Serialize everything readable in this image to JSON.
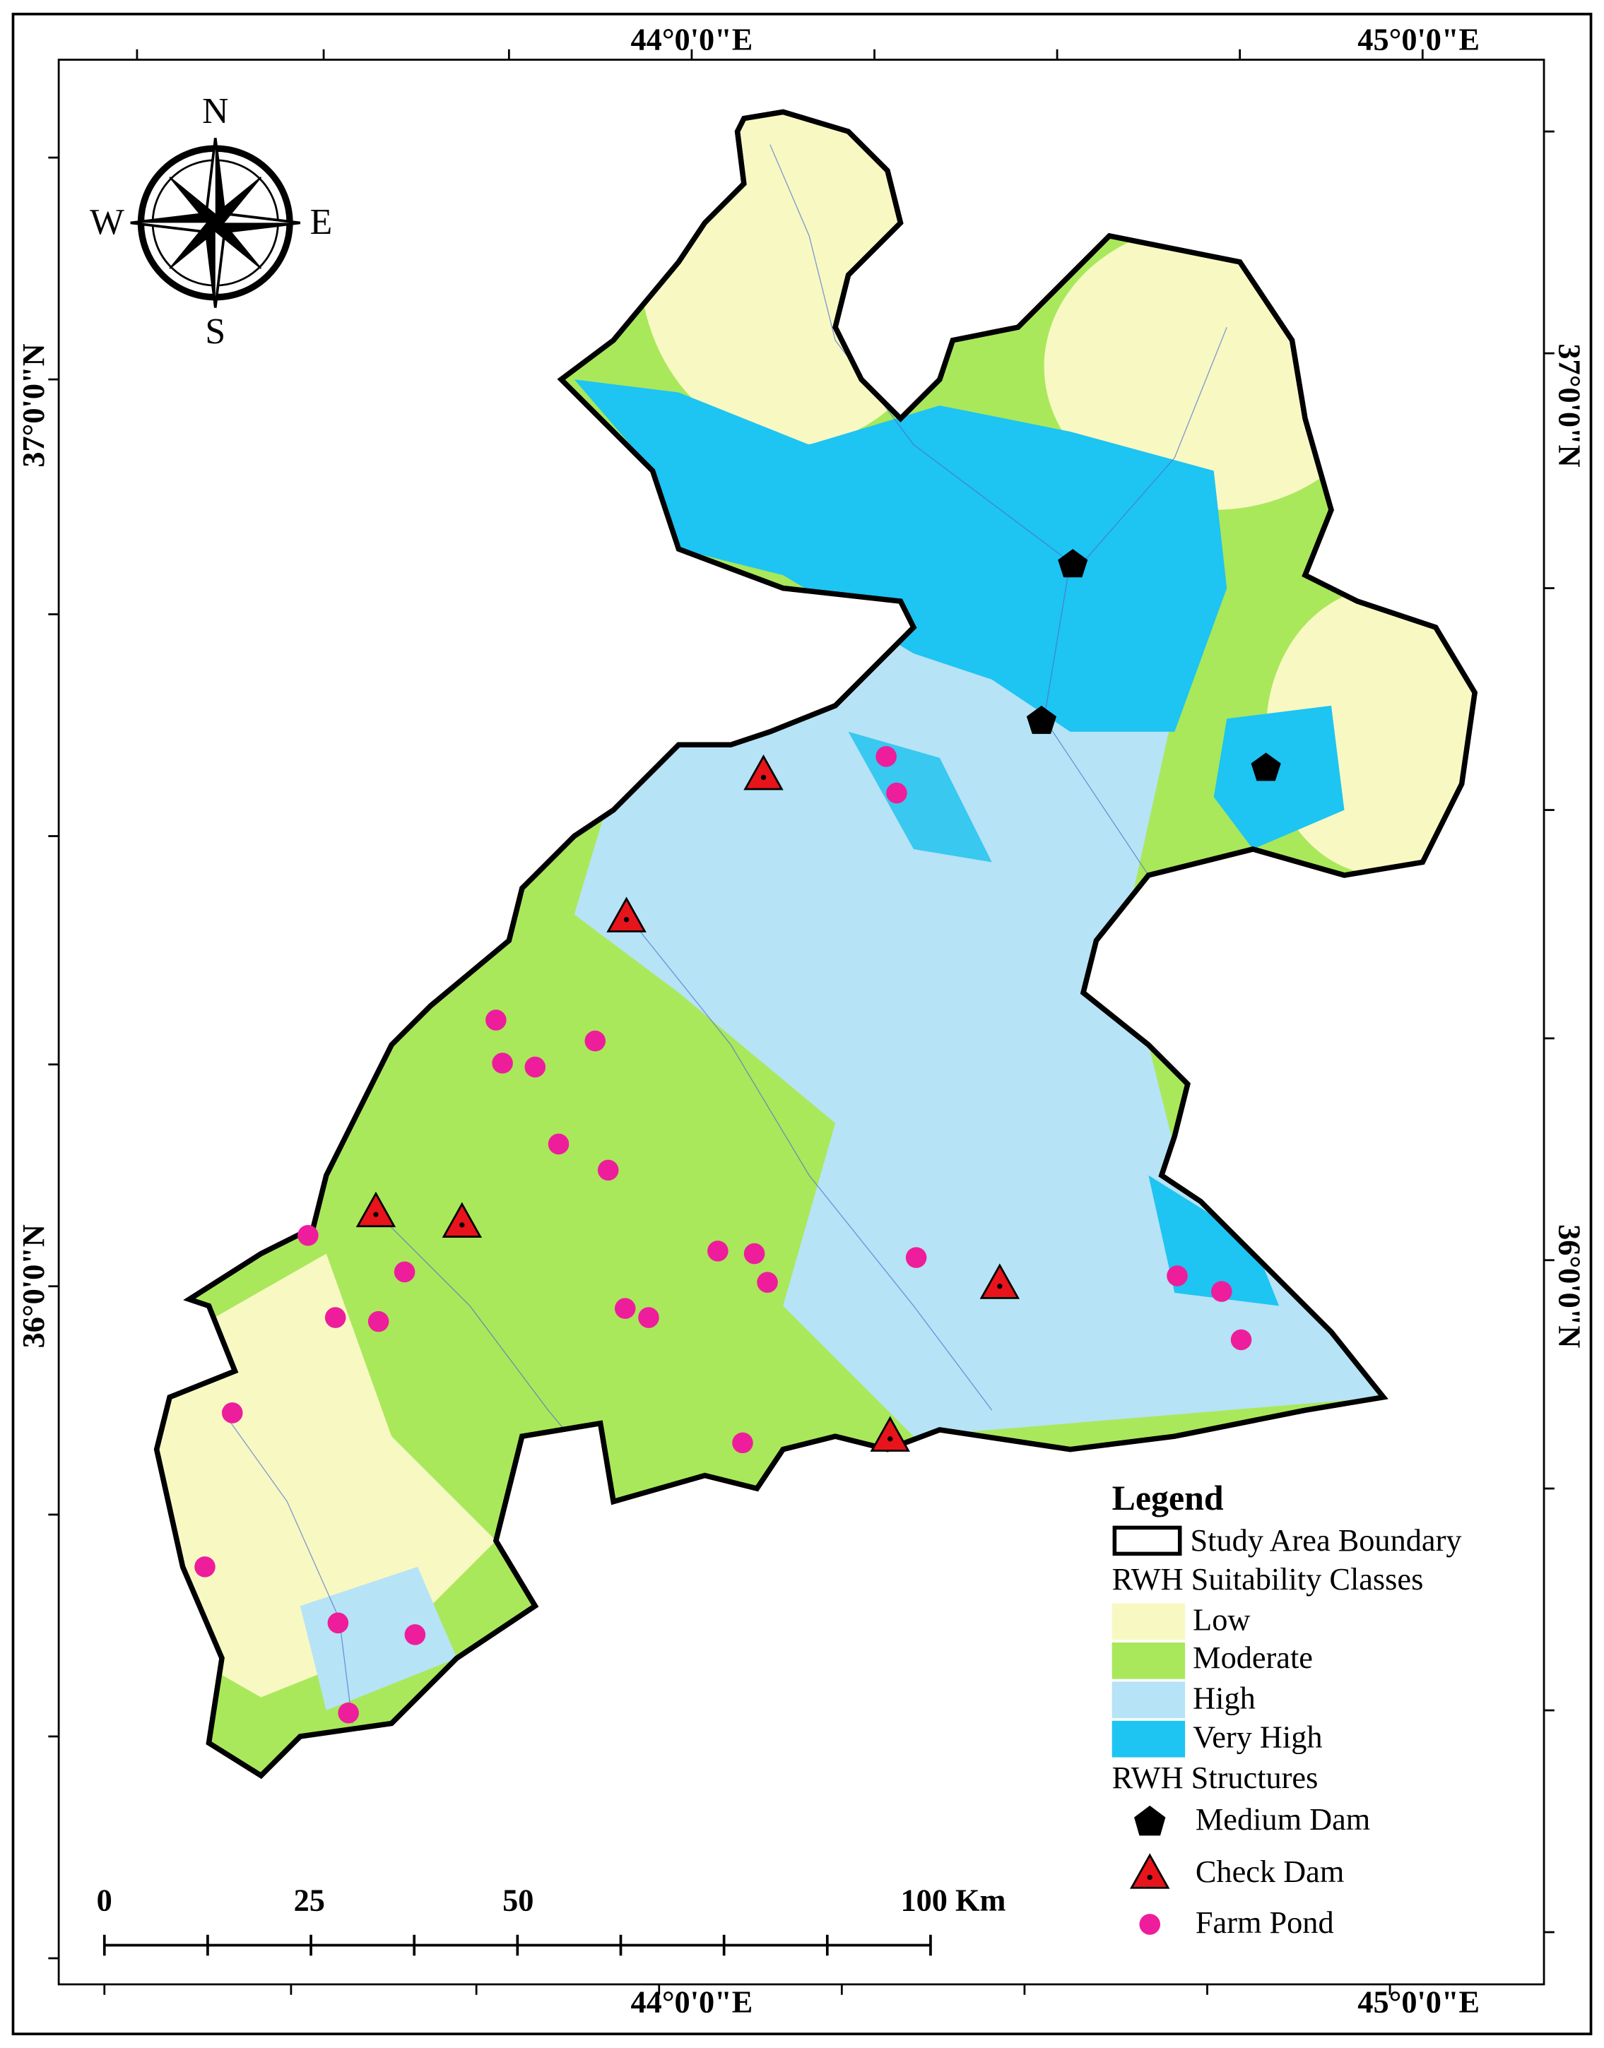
{
  "map": {
    "compass": {
      "north": "N",
      "south": "S",
      "east": "E",
      "west": "W"
    },
    "coordinates": {
      "top": [
        "44°0'0\"E",
        "45°0'0\"E"
      ],
      "bottom": [
        "44°0'0\"E",
        "45°0'0\"E"
      ],
      "left": [
        "37°0'0\"N",
        "36°0'0\"N"
      ],
      "right": [
        "37°0'0\"N",
        "36°0'0\"N"
      ]
    },
    "scale_bar": {
      "labels": [
        "0",
        "25",
        "50",
        "100 Km"
      ]
    },
    "legend": {
      "title": "Legend",
      "boundary": "Study Area Boundary",
      "classes_title": "RWH Suitability Classes",
      "classes": [
        "Low",
        "Moderate",
        "High",
        "Very High"
      ],
      "structures_title": "RWH Structures",
      "structures": [
        "Medium Dam",
        "Check Dam",
        "Farm Pond"
      ]
    }
  }
}
